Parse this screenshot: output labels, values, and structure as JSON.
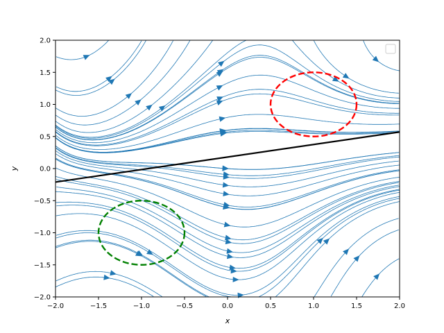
{
  "chart_data": {
    "type": "streamplot",
    "xlabel": "x",
    "ylabel": "y",
    "xlim": [
      -2,
      2
    ],
    "ylim": [
      -2,
      2
    ],
    "grid": false,
    "x_ticks": [
      "−2.0",
      "−1.5",
      "−1.0",
      "−0.5",
      "0.0",
      "0.5",
      "1.0",
      "1.5",
      "2.0"
    ],
    "y_ticks": [
      "−2.0",
      "−1.5",
      "−1.0",
      "−0.5",
      "0.0",
      "0.5",
      "1.0",
      "1.5",
      "2.0"
    ],
    "legend": {
      "placement": "upper-right",
      "entries": []
    },
    "stream_color": "#1f77b4",
    "boundary_line": {
      "x": [
        -2,
        2
      ],
      "y": [
        -0.21,
        0.57
      ],
      "color": "#000000"
    },
    "circles": [
      {
        "center": [
          1.0,
          1.0
        ],
        "radius": 0.5,
        "color": "#ff0000",
        "style": "dashed"
      },
      {
        "center": [
          -1.0,
          -1.0
        ],
        "radius": 0.5,
        "color": "#008000",
        "style": "dashed"
      }
    ]
  }
}
